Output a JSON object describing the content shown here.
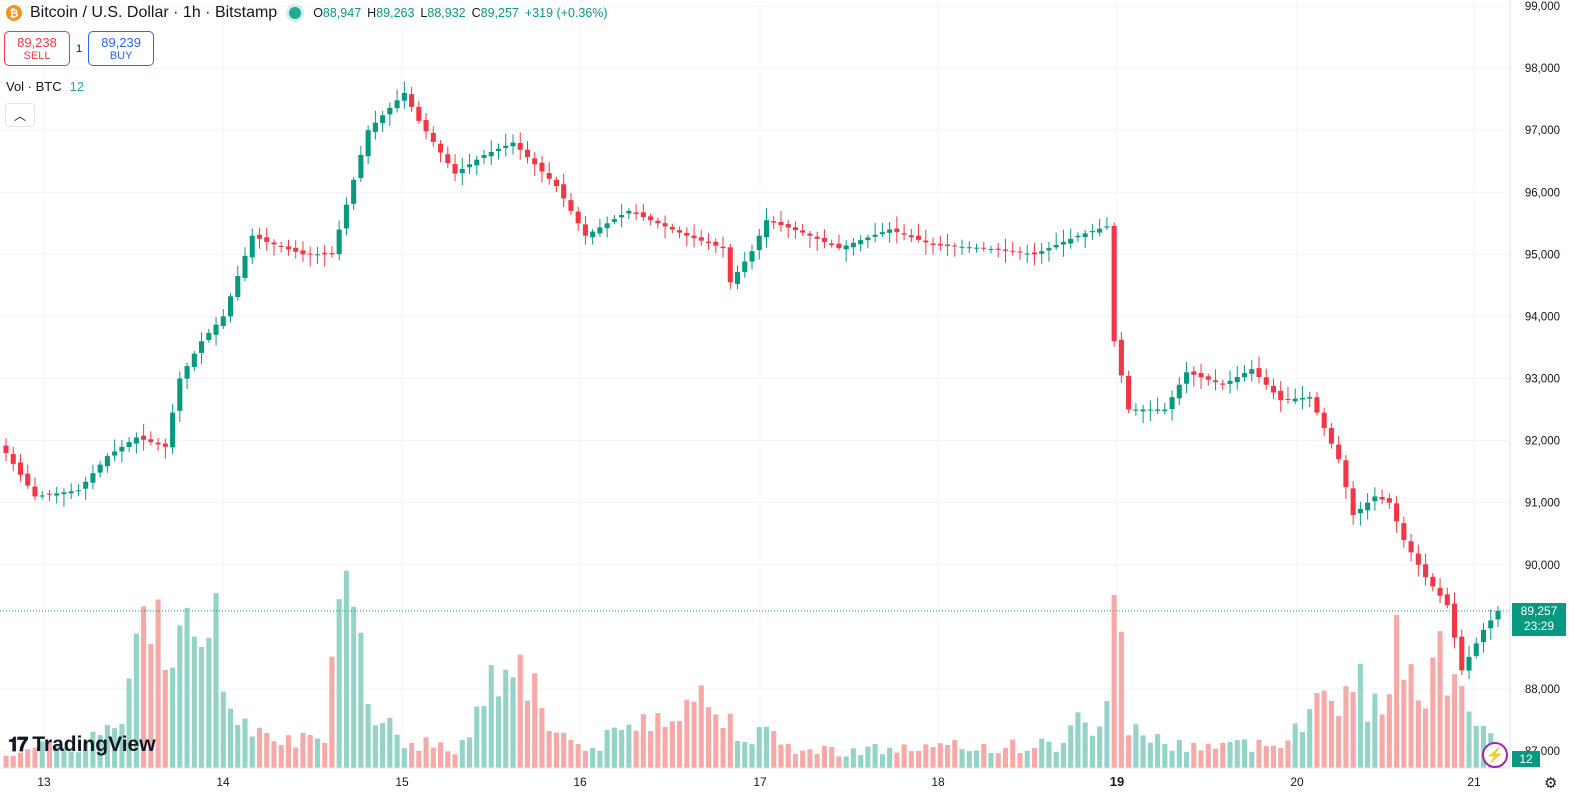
{
  "header": {
    "symbol_icon": "bitcoin-icon",
    "title": "Bitcoin / U.S. Dollar · 1h · Bitstamp",
    "o_label": "O",
    "o_value": "88,947",
    "h_label": "H",
    "h_value": "89,263",
    "l_label": "L",
    "l_value": "88,932",
    "c_label": "C",
    "c_value": "89,257",
    "change": "+319 (+0.36%)"
  },
  "trade": {
    "sell_price": "89,238",
    "sell_label": "SELL",
    "spread": "1",
    "buy_price": "89,239",
    "buy_label": "BUY"
  },
  "volume_legend": {
    "label": "Vol · BTC",
    "value": "12"
  },
  "brand": {
    "name": "TradingView"
  },
  "tags": {
    "price": "89,257",
    "countdown": "23:29",
    "volume": "12"
  },
  "colors": {
    "up": "#089981",
    "down": "#f23645",
    "up_vol": "#93d3c8",
    "down_vol": "#f7a9a7",
    "grid": "#f0f3fa",
    "accent": "#2962ff"
  },
  "chart_data": {
    "type": "candlestick",
    "interval": "1h",
    "ylim": [
      87000,
      99000
    ],
    "yticks": [
      87000,
      88000,
      90000,
      91000,
      92000,
      93000,
      94000,
      95000,
      96000,
      97000,
      98000,
      99000
    ],
    "ytick_labels": [
      "87,000",
      "88,000",
      "90,000",
      "91,000",
      "92,000",
      "93,000",
      "94,000",
      "95,000",
      "96,000",
      "97,000",
      "98,000",
      "99,000"
    ],
    "xtick_labels": [
      "13",
      "14",
      "15",
      "16",
      "17",
      "18",
      "19",
      "20",
      "21"
    ],
    "xtick_bold": [
      "19"
    ],
    "last_price": 89257,
    "volume_last": 12,
    "anchors": [
      [
        0,
        91800
      ],
      [
        4,
        91100
      ],
      [
        10,
        91200
      ],
      [
        14,
        91750
      ],
      [
        18,
        92050
      ],
      [
        22,
        91900
      ],
      [
        24,
        93000
      ],
      [
        27,
        93600
      ],
      [
        30,
        94000
      ],
      [
        34,
        95300
      ],
      [
        36,
        95200
      ],
      [
        41,
        95000
      ],
      [
        45,
        95000
      ],
      [
        50,
        97000
      ],
      [
        55,
        97600
      ],
      [
        57,
        97150
      ],
      [
        62,
        96300
      ],
      [
        66,
        96600
      ],
      [
        70,
        96800
      ],
      [
        76,
        96100
      ],
      [
        80,
        95300
      ],
      [
        86,
        95700
      ],
      [
        94,
        95300
      ],
      [
        99,
        95100
      ],
      [
        100,
        94550
      ],
      [
        103,
        95050
      ],
      [
        105,
        95550
      ],
      [
        110,
        95350
      ],
      [
        115,
        95100
      ],
      [
        122,
        95400
      ],
      [
        128,
        95150
      ],
      [
        135,
        95100
      ],
      [
        142,
        95000
      ],
      [
        148,
        95300
      ],
      [
        152,
        95450
      ],
      [
        153,
        93600
      ],
      [
        155,
        92500
      ],
      [
        160,
        92500
      ],
      [
        163,
        93100
      ],
      [
        168,
        92900
      ],
      [
        172,
        93150
      ],
      [
        176,
        92650
      ],
      [
        180,
        92700
      ],
      [
        184,
        91700
      ],
      [
        186,
        90800
      ],
      [
        189,
        91100
      ],
      [
        191,
        91000
      ],
      [
        193,
        90400
      ],
      [
        196,
        89800
      ],
      [
        199,
        89350
      ],
      [
        201,
        88300
      ],
      [
        204,
        88950
      ],
      [
        206,
        89257
      ]
    ],
    "volume_anchors": [
      [
        0,
        0.3
      ],
      [
        10,
        0.4
      ],
      [
        16,
        0.8
      ],
      [
        19,
        2.4
      ],
      [
        22,
        2.7
      ],
      [
        26,
        2.0
      ],
      [
        28,
        3.3
      ],
      [
        30,
        1.6
      ],
      [
        32,
        1.0
      ],
      [
        35,
        0.8
      ],
      [
        40,
        0.5
      ],
      [
        44,
        0.4
      ],
      [
        46,
        2.5
      ],
      [
        48,
        2.9
      ],
      [
        50,
        1.3
      ],
      [
        55,
        0.5
      ],
      [
        62,
        0.3
      ],
      [
        70,
        2.2
      ],
      [
        72,
        1.7
      ],
      [
        75,
        0.8
      ],
      [
        80,
        0.3
      ],
      [
        95,
        1.3
      ],
      [
        100,
        0.8
      ],
      [
        110,
        0.3
      ],
      [
        145,
        0.4
      ],
      [
        148,
        0.8
      ],
      [
        150,
        0.5
      ],
      [
        152,
        1.5
      ],
      [
        153,
        3.2
      ],
      [
        155,
        0.8
      ],
      [
        160,
        0.4
      ],
      [
        175,
        0.4
      ],
      [
        178,
        0.8
      ],
      [
        182,
        1.2
      ],
      [
        186,
        1.6
      ],
      [
        189,
        1.0
      ],
      [
        192,
        2.0
      ],
      [
        196,
        1.6
      ],
      [
        198,
        1.8
      ],
      [
        201,
        1.8
      ],
      [
        203,
        0.9
      ],
      [
        206,
        0.3
      ]
    ]
  }
}
